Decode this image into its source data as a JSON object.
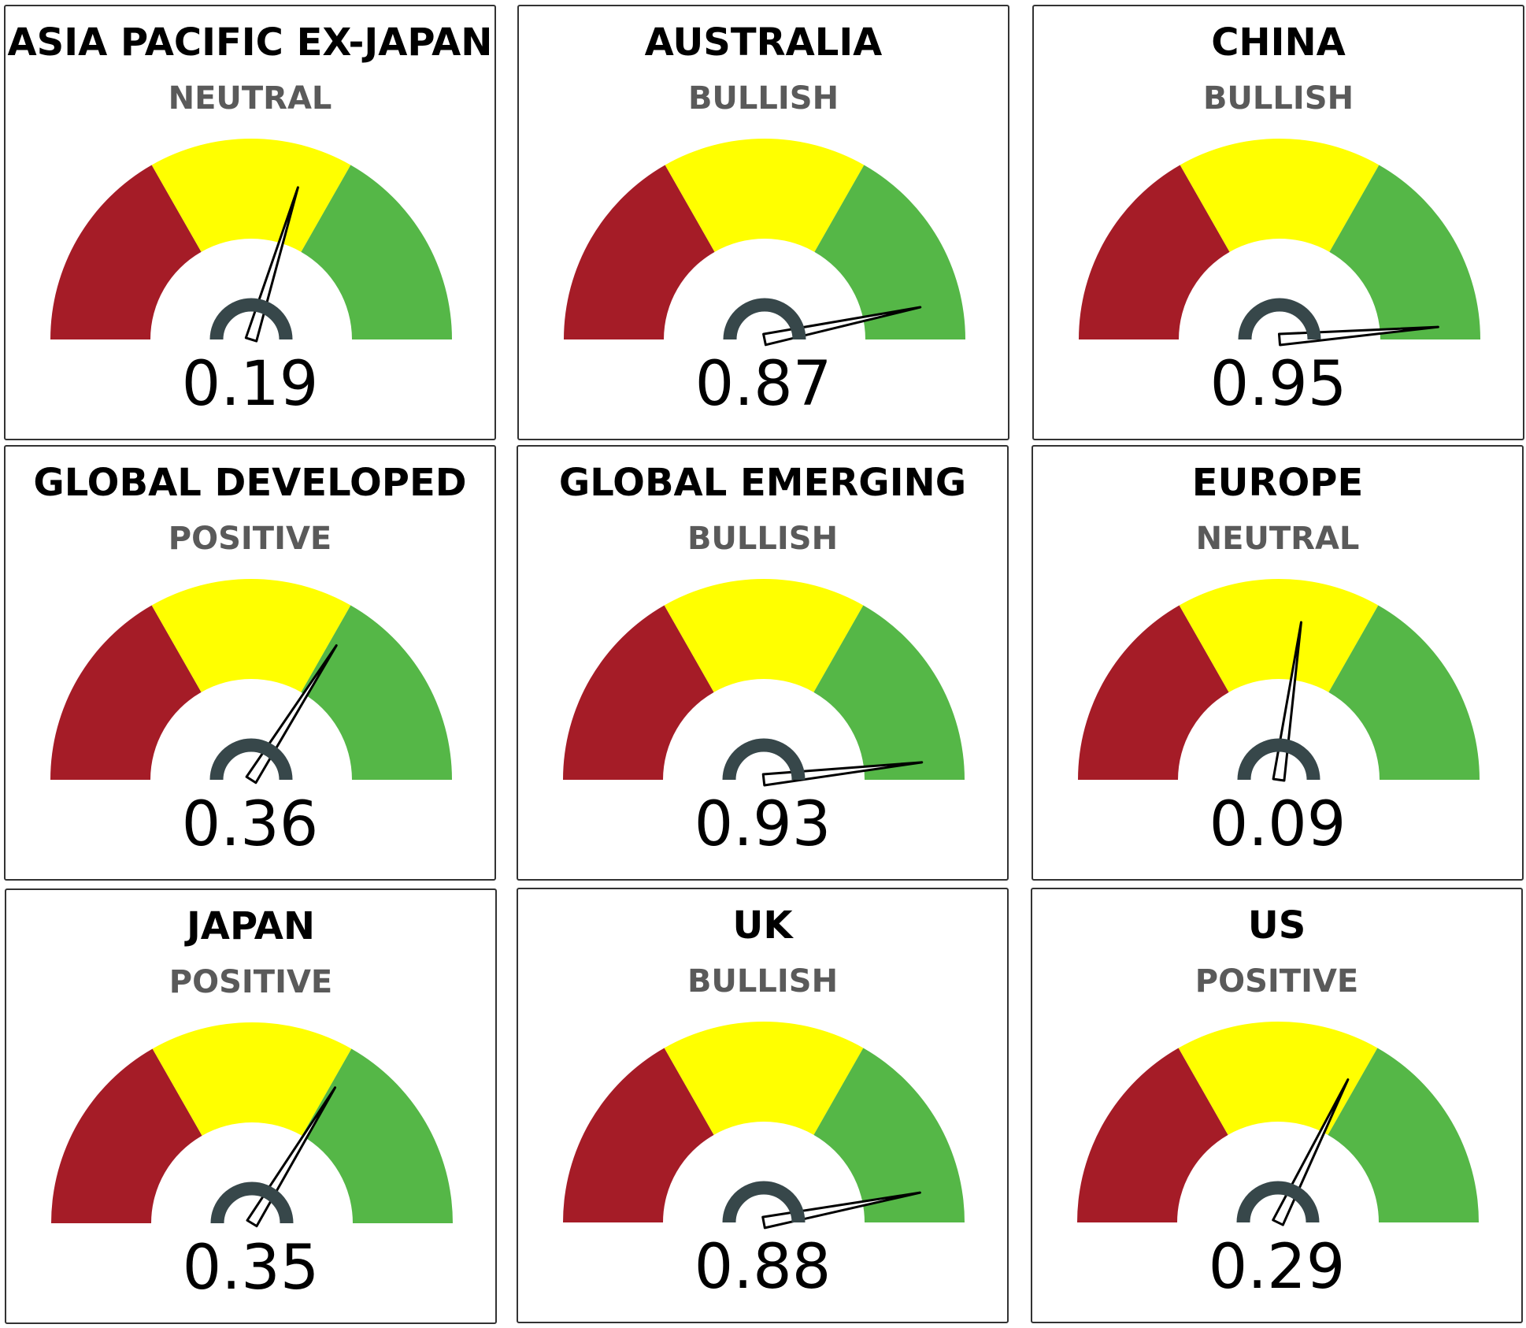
{
  "colors": {
    "bearish": "#a51c27",
    "neutral": "#ffff00",
    "bullish": "#55b747",
    "needle": "#000000",
    "hub": "#37474a",
    "status_text": "#5a5a5a"
  },
  "chart_data": [
    {
      "type": "gauge",
      "title": "ASIA PACIFIC EX-JAPAN",
      "status": "NEUTRAL",
      "value": 0.19,
      "value_label": "0.19",
      "range": [
        -1,
        1
      ],
      "bands": [
        [
          -1,
          -0.33
        ],
        [
          -0.33,
          0.33
        ],
        [
          0.33,
          1
        ]
      ]
    },
    {
      "type": "gauge",
      "title": "AUSTRALIA",
      "status": "BULLISH",
      "value": 0.87,
      "value_label": "0.87",
      "range": [
        -1,
        1
      ],
      "bands": [
        [
          -1,
          -0.33
        ],
        [
          -0.33,
          0.33
        ],
        [
          0.33,
          1
        ]
      ]
    },
    {
      "type": "gauge",
      "title": "CHINA",
      "status": "BULLISH",
      "value": 0.95,
      "value_label": "0.95",
      "range": [
        -1,
        1
      ],
      "bands": [
        [
          -1,
          -0.33
        ],
        [
          -0.33,
          0.33
        ],
        [
          0.33,
          1
        ]
      ]
    },
    {
      "type": "gauge",
      "title": "GLOBAL DEVELOPED",
      "status": "POSITIVE",
      "value": 0.36,
      "value_label": "0.36",
      "range": [
        -1,
        1
      ],
      "bands": [
        [
          -1,
          -0.33
        ],
        [
          -0.33,
          0.33
        ],
        [
          0.33,
          1
        ]
      ]
    },
    {
      "type": "gauge",
      "title": "GLOBAL EMERGING",
      "status": "BULLISH",
      "value": 0.93,
      "value_label": "0.93",
      "range": [
        -1,
        1
      ],
      "bands": [
        [
          -1,
          -0.33
        ],
        [
          -0.33,
          0.33
        ],
        [
          0.33,
          1
        ]
      ]
    },
    {
      "type": "gauge",
      "title": "EUROPE",
      "status": "NEUTRAL",
      "value": 0.09,
      "value_label": "0.09",
      "range": [
        -1,
        1
      ],
      "bands": [
        [
          -1,
          -0.33
        ],
        [
          -0.33,
          0.33
        ],
        [
          0.33,
          1
        ]
      ]
    },
    {
      "type": "gauge",
      "title": "JAPAN",
      "status": "POSITIVE",
      "value": 0.35,
      "value_label": "0.35",
      "range": [
        -1,
        1
      ],
      "bands": [
        [
          -1,
          -0.33
        ],
        [
          -0.33,
          0.33
        ],
        [
          0.33,
          1
        ]
      ]
    },
    {
      "type": "gauge",
      "title": "UK",
      "status": "BULLISH",
      "value": 0.88,
      "value_label": "0.88",
      "range": [
        -1,
        1
      ],
      "bands": [
        [
          -1,
          -0.33
        ],
        [
          -0.33,
          0.33
        ],
        [
          0.33,
          1
        ]
      ]
    },
    {
      "type": "gauge",
      "title": "US",
      "status": "POSITIVE",
      "value": 0.29,
      "value_label": "0.29",
      "range": [
        -1,
        1
      ],
      "bands": [
        [
          -1,
          -0.33
        ],
        [
          -0.33,
          0.33
        ],
        [
          0.33,
          1
        ]
      ]
    }
  ]
}
